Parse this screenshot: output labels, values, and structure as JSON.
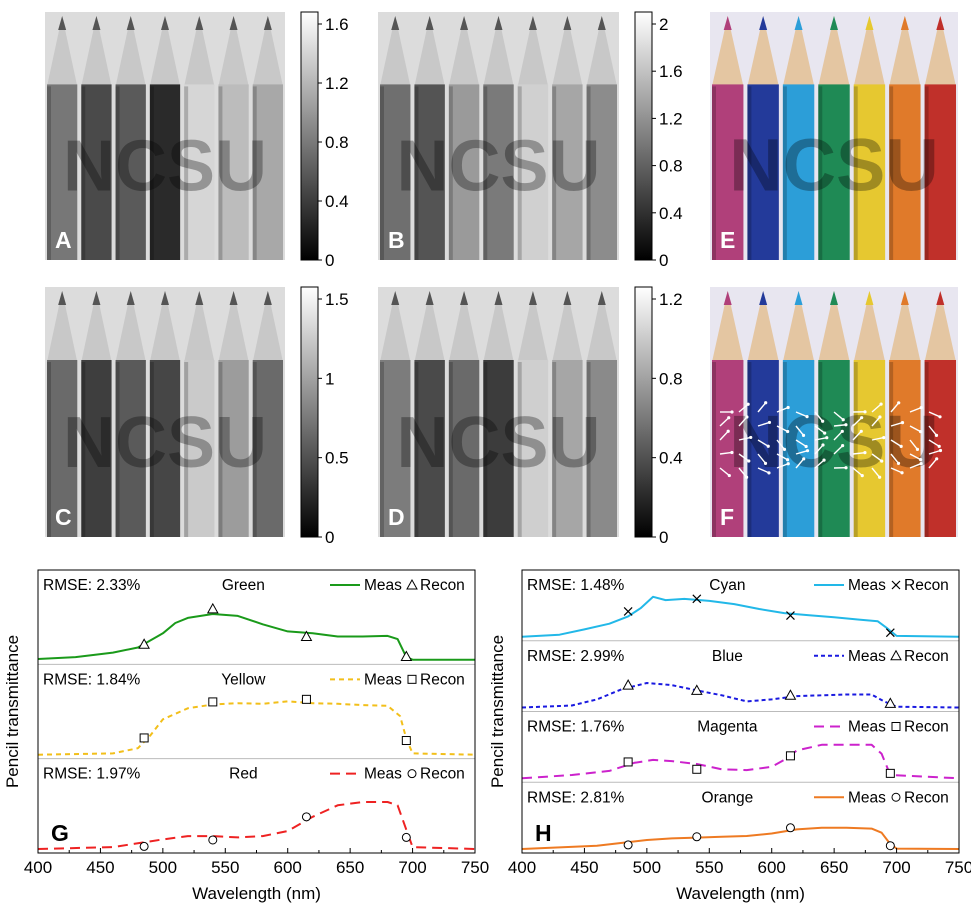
{
  "image_panels": [
    {
      "tag": "A",
      "mode": "gray",
      "colorbar_ticks": [
        "1.6",
        "1.2",
        "0.8",
        "0.4",
        "0"
      ]
    },
    {
      "tag": "B",
      "mode": "gray",
      "colorbar_ticks": [
        "2",
        "1.6",
        "1.2",
        "0.8",
        "0.4",
        "0"
      ]
    },
    {
      "tag": "E",
      "mode": "color"
    },
    {
      "tag": "C",
      "mode": "gray",
      "colorbar_ticks": [
        "1.5",
        "1",
        "0.5",
        "0"
      ]
    },
    {
      "tag": "D",
      "mode": "gray",
      "colorbar_ticks": [
        "1.2",
        "0.8",
        "0.4",
        "0"
      ]
    },
    {
      "tag": "F",
      "mode": "color-with-vectors"
    }
  ],
  "image_content": {
    "watermark_text": "NCSU",
    "pencil_colors": [
      "#b0407a",
      "#233a9a",
      "#2c9ed8",
      "#1f8a55",
      "#e6c830",
      "#e07a2a",
      "#c0302a"
    ],
    "wood_color": "#e4c6a2",
    "background_color": "#e8e6f0"
  },
  "chart_data": [
    {
      "panel_tag": "G",
      "type": "line",
      "xlabel": "Wavelength (nm)",
      "ylabel": "Pencil transmittance",
      "xlim": [
        400,
        750
      ],
      "xticks": [
        "400",
        "450",
        "500",
        "550",
        "600",
        "650",
        "700",
        "750"
      ],
      "subplots": [
        {
          "name": "Green",
          "rmse": "RMSE: 2.33%",
          "color": "#1a9a1a",
          "dash": "solid",
          "marker": "triangle",
          "meas_label": "Meas",
          "recon_label": "Recon",
          "x": [
            400,
            430,
            460,
            480,
            500,
            510,
            520,
            540,
            560,
            580,
            600,
            620,
            640,
            660,
            680,
            688,
            695,
            700,
            750
          ],
          "y": [
            0.02,
            0.05,
            0.12,
            0.2,
            0.42,
            0.58,
            0.66,
            0.72,
            0.69,
            0.56,
            0.45,
            0.42,
            0.37,
            0.37,
            0.38,
            0.33,
            0.05,
            0.01,
            0.01
          ],
          "recon_x": [
            485,
            540,
            615,
            695
          ],
          "recon_y": [
            0.25,
            0.8,
            0.37,
            0.06
          ]
        },
        {
          "name": "Yellow",
          "rmse": "RMSE: 1.84%",
          "color": "#f2bf1a",
          "dash": "short",
          "marker": "square",
          "meas_label": "Meas",
          "recon_label": "Recon",
          "x": [
            400,
            460,
            480,
            490,
            500,
            520,
            540,
            560,
            580,
            600,
            620,
            640,
            660,
            680,
            690,
            695,
            700,
            750
          ],
          "y": [
            0.0,
            0.02,
            0.1,
            0.3,
            0.55,
            0.72,
            0.78,
            0.8,
            0.79,
            0.83,
            0.8,
            0.79,
            0.77,
            0.76,
            0.6,
            0.25,
            0.02,
            0.0
          ],
          "recon_x": [
            485,
            540,
            615,
            695
          ],
          "recon_y": [
            0.26,
            0.82,
            0.86,
            0.22
          ]
        },
        {
          "name": "Red",
          "rmse": "RMSE: 1.97%",
          "color": "#ee2222",
          "dash": "long",
          "marker": "circle",
          "meas_label": "Meas",
          "recon_label": "Recon",
          "x": [
            400,
            460,
            500,
            520,
            540,
            560,
            580,
            600,
            620,
            640,
            660,
            680,
            688,
            695,
            700,
            750
          ],
          "y": [
            0.0,
            0.03,
            0.15,
            0.2,
            0.2,
            0.18,
            0.2,
            0.28,
            0.5,
            0.68,
            0.73,
            0.73,
            0.68,
            0.3,
            0.03,
            0.0
          ],
          "recon_x": [
            485,
            540,
            615,
            695
          ],
          "recon_y": [
            0.04,
            0.14,
            0.5,
            0.18
          ]
        }
      ]
    },
    {
      "panel_tag": "H",
      "type": "line",
      "xlabel": "Wavelength (nm)",
      "ylabel": "Pencil transmittance",
      "xlim": [
        400,
        750
      ],
      "xticks": [
        "400",
        "450",
        "500",
        "550",
        "600",
        "650",
        "700",
        "750"
      ],
      "subplots": [
        {
          "name": "Cyan",
          "rmse": "RMSE: 1.48%",
          "color": "#22b8e8",
          "dash": "solid",
          "marker": "cross",
          "meas_label": "Meas",
          "recon_label": "Recon",
          "x": [
            400,
            430,
            450,
            470,
            485,
            495,
            505,
            515,
            530,
            550,
            570,
            590,
            610,
            630,
            650,
            670,
            685,
            692,
            700,
            750
          ],
          "y": [
            0.0,
            0.05,
            0.18,
            0.32,
            0.5,
            0.7,
            0.98,
            0.9,
            0.93,
            0.88,
            0.8,
            0.68,
            0.58,
            0.53,
            0.48,
            0.42,
            0.38,
            0.22,
            0.02,
            0.0
          ],
          "recon_x": [
            485,
            540,
            615,
            695
          ],
          "recon_y": [
            0.62,
            0.93,
            0.52,
            0.1
          ]
        },
        {
          "name": "Blue",
          "rmse": "RMSE: 2.99%",
          "color": "#1a1ae0",
          "dash": "dotted",
          "marker": "triangle",
          "meas_label": "Meas",
          "recon_label": "Recon",
          "x": [
            400,
            440,
            460,
            480,
            500,
            520,
            540,
            560,
            580,
            600,
            620,
            640,
            660,
            680,
            690,
            700,
            750
          ],
          "y": [
            0.0,
            0.05,
            0.2,
            0.45,
            0.6,
            0.55,
            0.42,
            0.3,
            0.15,
            0.2,
            0.28,
            0.3,
            0.32,
            0.32,
            0.15,
            0.02,
            0.0
          ],
          "recon_x": [
            485,
            540,
            615,
            695
          ],
          "recon_y": [
            0.55,
            0.42,
            0.3,
            0.1
          ]
        },
        {
          "name": "Magenta",
          "rmse": "RMSE: 1.76%",
          "color": "#cc22cc",
          "dash": "long",
          "marker": "square",
          "meas_label": "Meas",
          "recon_label": "Recon",
          "x": [
            400,
            440,
            470,
            490,
            505,
            520,
            540,
            560,
            580,
            600,
            610,
            620,
            640,
            660,
            680,
            688,
            695,
            750
          ],
          "y": [
            0.0,
            0.08,
            0.18,
            0.38,
            0.45,
            0.42,
            0.35,
            0.22,
            0.2,
            0.28,
            0.45,
            0.68,
            0.82,
            0.82,
            0.82,
            0.6,
            0.08,
            0.0
          ],
          "recon_x": [
            485,
            540,
            615,
            695
          ],
          "recon_y": [
            0.4,
            0.22,
            0.55,
            0.12
          ]
        },
        {
          "name": "Orange",
          "rmse": "RMSE: 2.81%",
          "color": "#ee7a22",
          "dash": "solid",
          "marker": "circle",
          "meas_label": "Meas",
          "recon_label": "Recon",
          "x": [
            400,
            460,
            480,
            500,
            520,
            540,
            560,
            580,
            600,
            620,
            640,
            660,
            680,
            688,
            695,
            700,
            750
          ],
          "y": [
            0.0,
            0.08,
            0.15,
            0.22,
            0.26,
            0.28,
            0.3,
            0.32,
            0.38,
            0.48,
            0.52,
            0.52,
            0.5,
            0.4,
            0.12,
            0.01,
            0.0
          ],
          "recon_x": [
            485,
            540,
            615,
            695
          ],
          "recon_y": [
            0.1,
            0.3,
            0.52,
            0.08
          ]
        }
      ]
    }
  ]
}
